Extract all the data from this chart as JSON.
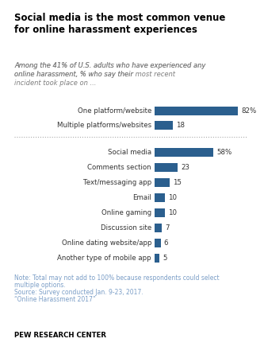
{
  "title": "Social media is the most common venue\nfor online harassment experiences",
  "subtitle_plain": "Among the 41% of U.S. adults who have experienced any\nonline harassment, % who say their ",
  "subtitle_bold": "most recent",
  "subtitle_end": "\nincident took place on ...",
  "group1_labels": [
    "One platform/website",
    "Multiple platforms/websites"
  ],
  "group1_values": [
    82,
    18
  ],
  "group1_pct_labels": [
    "82%",
    "18"
  ],
  "group2_labels": [
    "Social media",
    "Comments section",
    "Text/messaging app",
    "Email",
    "Online gaming",
    "Discussion site",
    "Online dating website/app",
    "Another type of mobile app"
  ],
  "group2_values": [
    58,
    23,
    15,
    10,
    10,
    7,
    6,
    5
  ],
  "group2_pct_labels": [
    "58%",
    "23",
    "15",
    "10",
    "10",
    "7",
    "6",
    "5"
  ],
  "bar_color": "#2B5F8E",
  "background_color": "#FFFFFF",
  "note_line1": "Note: Total may not add to 100% because respondents could select",
  "note_line2": "multiple options.",
  "note_line3": "Source: Survey conducted Jan. 9-23, 2017.",
  "note_line4": "“Online Harassment 2017”",
  "footer": "PEW RESEARCH CENTER",
  "title_color": "#000000",
  "subtitle_color": "#7F7F7F",
  "note_color": "#7B9EC7",
  "footer_color": "#000000",
  "title_fontsize": 8.5,
  "subtitle_fontsize": 6.0,
  "label_fontsize": 6.2,
  "note_fontsize": 5.5,
  "footer_fontsize": 6.2
}
